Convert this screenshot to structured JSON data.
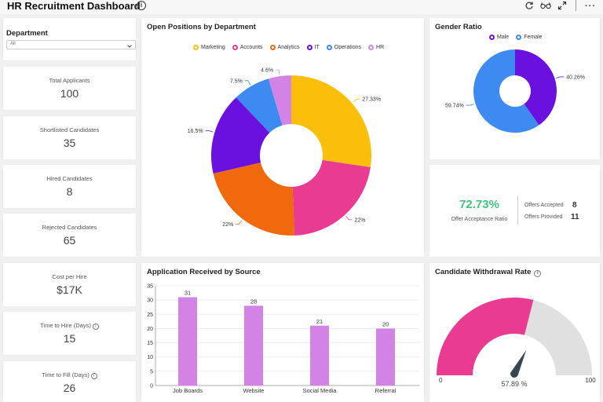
{
  "header": {
    "title": "HR Recruitment Dashboard",
    "icons": [
      "info-icon",
      "refresh-icon",
      "glasses-icon",
      "expand-icon",
      "more-icon"
    ]
  },
  "filter": {
    "label": "Department",
    "selected": "All"
  },
  "kpis": {
    "total_applicants": {
      "label": "Total Applicants",
      "value": "100"
    },
    "shortlisted": {
      "label": "Shortlisted Candidates",
      "value": "35"
    },
    "hired": {
      "label": "Hired Candidates",
      "value": "8"
    },
    "rejected": {
      "label": "Rejected Candidates",
      "value": "65"
    },
    "cost_per_hire": {
      "label": "Cost per Hire",
      "value": "$17K"
    },
    "time_to_hire": {
      "label": "Time to Hire (Days)",
      "value": "15"
    },
    "time_to_fill": {
      "label": "Time to Fill (Days)",
      "value": "26"
    }
  },
  "offers": {
    "ratio": "72.73%",
    "ratio_label": "Offer Acceptance Ratio",
    "accepted_label": "Offers Accepted",
    "accepted_value": "8",
    "provided_label": "Offers Provided",
    "provided_value": "11",
    "ratio_color": "#3ec47c"
  },
  "chart_data": [
    {
      "id": "positions",
      "type": "pie",
      "title": "Open Positions by Department",
      "donut": true,
      "legend_position": "top",
      "labels": [
        "Marketing",
        "Accounts",
        "Analytics",
        "IT",
        "Operations",
        "HR"
      ],
      "values": [
        27.33,
        22,
        22,
        16.5,
        7.5,
        4.6
      ],
      "value_labels": [
        "27.33%",
        "22%",
        "22%",
        "16.5%",
        "7.5%",
        "4.6%"
      ],
      "colors": [
        "#fbbf0a",
        "#e93b92",
        "#f0690c",
        "#6a11e0",
        "#3d8bf0",
        "#d383e6"
      ]
    },
    {
      "id": "gender",
      "type": "pie",
      "title": "Gender Ratio",
      "donut": true,
      "legend_position": "top",
      "labels": [
        "Male",
        "Female"
      ],
      "values": [
        40.26,
        59.74
      ],
      "value_labels": [
        "40.26%",
        "59.74%"
      ],
      "colors": [
        "#6a11e0",
        "#3d8bf0"
      ]
    },
    {
      "id": "sources",
      "type": "bar",
      "title": "Application Received by Source",
      "categories": [
        "Job Boards",
        "Website",
        "Social Media",
        "Referral"
      ],
      "values": [
        31,
        28,
        21,
        20
      ],
      "ylim": [
        0,
        35
      ],
      "yticks": [
        0,
        5,
        10,
        15,
        20,
        25,
        30,
        35
      ],
      "grid": true,
      "color": "#d383e6"
    },
    {
      "id": "withdrawal",
      "type": "gauge",
      "title": "Candidate Withdrawal Rate",
      "value": 57.89,
      "value_label": "57.89 %",
      "min": 0,
      "max": 100,
      "min_label": "0",
      "max_label": "100",
      "fill_color": "#e93b92",
      "track_color": "#e0e0e0",
      "needle_color": "#37474f"
    }
  ]
}
